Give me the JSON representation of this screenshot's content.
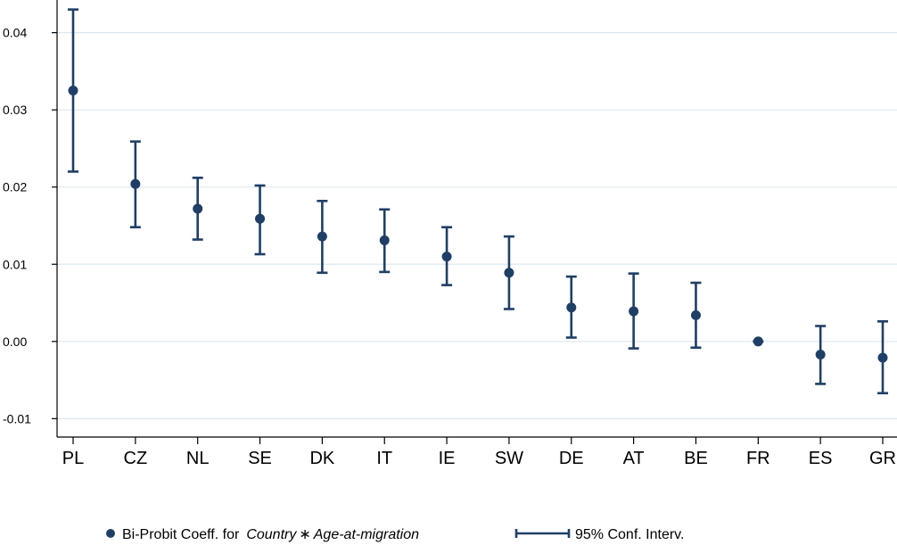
{
  "chart_data": {
    "type": "scatter",
    "categories": [
      "PL",
      "CZ",
      "NL",
      "SE",
      "DK",
      "IT",
      "IE",
      "SW",
      "DE",
      "AT",
      "BE",
      "FR",
      "ES",
      "GR"
    ],
    "values": [
      0.0325,
      0.0204,
      0.0172,
      0.0159,
      0.0136,
      0.0131,
      0.011,
      0.0089,
      0.0044,
      0.0039,
      0.0034,
      0.0,
      -0.0017,
      -0.0021
    ],
    "ci_lower": [
      0.022,
      0.0148,
      0.0132,
      0.0113,
      0.0089,
      0.009,
      0.0073,
      0.0042,
      0.0005,
      -0.0009,
      -0.0008,
      0.0,
      -0.0055,
      -0.0067
    ],
    "ci_upper": [
      0.043,
      0.0259,
      0.0212,
      0.0202,
      0.0182,
      0.0171,
      0.0148,
      0.0136,
      0.0084,
      0.0088,
      0.0076,
      0.0,
      0.002,
      0.0026
    ],
    "yticks": [
      "-0.01",
      "0.00",
      "0.01",
      "0.02",
      "0.03",
      "0.04"
    ],
    "ytick_values": [
      -0.01,
      0.0,
      0.01,
      0.02,
      0.03,
      0.04
    ],
    "ylim": [
      -0.011,
      0.044
    ],
    "grid": true,
    "legend_position": "bottom",
    "legend": {
      "point_prefix": "Bi-Probit Coeff. for",
      "point_italic": "Country",
      "point_operator": "∗",
      "point_italic2": "Age-at-migration",
      "ci_label": "95% Conf. Interv."
    },
    "colors": {
      "marker": "#1f3f66",
      "gridline": "#dde8ef",
      "axis": "#000000"
    }
  }
}
